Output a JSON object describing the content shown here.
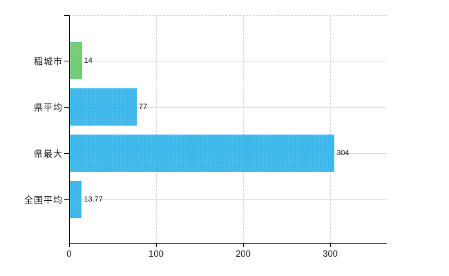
{
  "chart_data": {
    "type": "bar",
    "orientation": "horizontal",
    "title": "",
    "xlabel": "",
    "ylabel": "",
    "legend": "none",
    "grid": {
      "horizontal": "solid",
      "vertical": "dashed",
      "top_border": "dashed"
    },
    "categories": [
      "稲城市",
      "県平均",
      "県最大",
      "全国平均"
    ],
    "values": [
      14,
      77,
      304,
      13.77
    ],
    "value_labels": [
      "14",
      "77",
      "304",
      "13.77"
    ],
    "x_ticks": [
      0,
      100,
      200,
      300
    ],
    "x_tick_labels": [
      "0",
      "100",
      "200",
      "300"
    ],
    "xlim": [
      0,
      365
    ],
    "bar_color_names": [
      "highlight-green",
      "blue",
      "blue",
      "blue"
    ]
  },
  "colors": {
    "bar_green": "#6fca75",
    "bar_green_dot": "#9bdf9f",
    "bar_blue": "#3cb6ea",
    "bar_blue_dot": "#66c9f1",
    "grid_horizontal": "#d6ddd2",
    "grid_vertical": "#d7cfd6",
    "axis": "#000000",
    "text": "#1a1a1a",
    "background": "#ffffff"
  }
}
